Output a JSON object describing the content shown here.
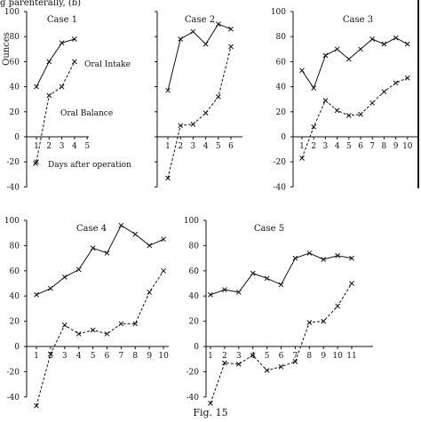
{
  "header_fragment": "g parenterally, (b)",
  "figure_caption": "Fig. 15",
  "y_axis_label": "Ounces",
  "chart_data": [
    {
      "type": "line",
      "title": "Case 1",
      "x": [
        1,
        2,
        3,
        4
      ],
      "xticks": [
        1,
        2,
        3,
        4,
        5
      ],
      "ylim": [
        -40,
        100
      ],
      "yticks": [
        -40,
        -20,
        0,
        20,
        40,
        60,
        80,
        100
      ],
      "series": [
        {
          "name": "Oral Intake",
          "style": "solid",
          "values": [
            40,
            60,
            75,
            78
          ]
        },
        {
          "name": "Oral Balance",
          "style": "dashed",
          "values": [
            -20,
            33,
            40,
            60
          ]
        }
      ],
      "annotations": [
        "Oral Intake",
        "Oral Balance",
        "Days after operation"
      ]
    },
    {
      "type": "line",
      "title": "Case 2",
      "x": [
        1,
        2,
        3,
        4,
        5,
        6
      ],
      "xticks": [
        1,
        2,
        3,
        4,
        5,
        6
      ],
      "ylim": [
        -40,
        100
      ],
      "series": [
        {
          "name": "",
          "style": "solid",
          "values": [
            37,
            78,
            84,
            74,
            90,
            86
          ]
        },
        {
          "name": "",
          "style": "dashed",
          "values": [
            -33,
            9,
            10,
            19,
            32,
            72
          ]
        }
      ]
    },
    {
      "type": "line",
      "title": "Case 3",
      "x": [
        1,
        2,
        3,
        4,
        5,
        6,
        7,
        8,
        9,
        10
      ],
      "xticks": [
        1,
        2,
        3,
        4,
        5,
        6,
        7,
        8,
        9,
        10
      ],
      "ylim": [
        -40,
        100
      ],
      "yticks": [
        -40,
        -20,
        0,
        20,
        40,
        60,
        80,
        100
      ],
      "series": [
        {
          "name": "",
          "style": "solid",
          "values": [
            53,
            39,
            65,
            70,
            62,
            70,
            78,
            74,
            79,
            74
          ]
        },
        {
          "name": "",
          "style": "dashed",
          "values": [
            -17,
            8,
            29,
            21,
            17,
            18,
            27,
            36,
            43,
            47
          ]
        }
      ]
    },
    {
      "type": "line",
      "title": "Case 4",
      "x": [
        1,
        2,
        3,
        4,
        5,
        6,
        7,
        8,
        9,
        10
      ],
      "xticks": [
        1,
        2,
        3,
        4,
        5,
        6,
        7,
        8,
        9,
        10
      ],
      "ylim": [
        -40,
        100
      ],
      "yticks": [
        -40,
        -20,
        0,
        20,
        40,
        60,
        80,
        100
      ],
      "series": [
        {
          "name": "",
          "style": "solid",
          "values": [
            41,
            46,
            55,
            61,
            78,
            74,
            96,
            89,
            80,
            85
          ]
        },
        {
          "name": "",
          "style": "dashed",
          "values": [
            -47,
            -6,
            17,
            10,
            13,
            10,
            18,
            18,
            43,
            60
          ]
        }
      ]
    },
    {
      "type": "line",
      "title": "Case 5",
      "x": [
        1,
        2,
        3,
        4,
        5,
        6,
        7,
        8,
        9,
        10,
        11
      ],
      "xticks": [
        1,
        2,
        3,
        4,
        5,
        6,
        7,
        8,
        9,
        10,
        11
      ],
      "ylim": [
        -40,
        100
      ],
      "yticks": [
        -40,
        -20,
        0,
        20,
        40,
        60,
        80,
        100
      ],
      "series": [
        {
          "name": "",
          "style": "solid",
          "values": [
            41,
            45,
            43,
            58,
            54,
            49,
            70,
            74,
            69,
            72,
            70
          ]
        },
        {
          "name": "",
          "style": "dashed",
          "values": [
            -45,
            -13,
            -14,
            -7,
            -19,
            -16,
            -12,
            19,
            20,
            32,
            50
          ]
        }
      ]
    }
  ]
}
